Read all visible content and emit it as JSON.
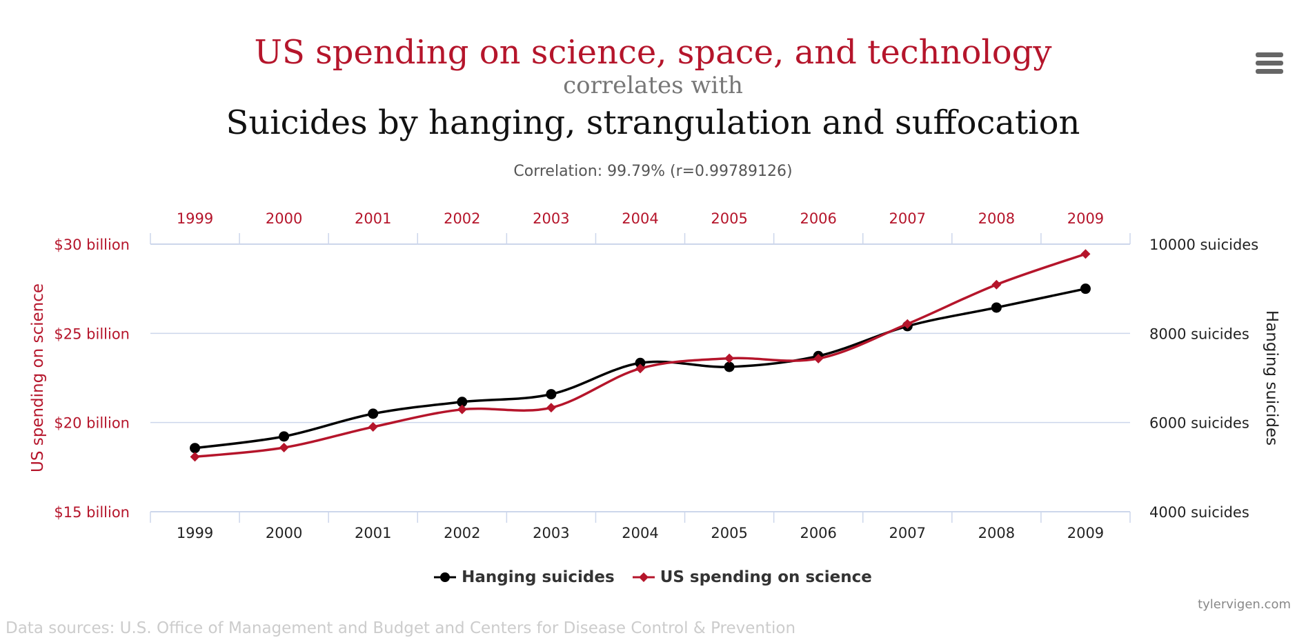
{
  "header": {
    "title_a": "US spending on science, space, and technology",
    "connector": "correlates with",
    "title_b": "Suicides by hanging, strangulation and suffocation",
    "correlation": "Correlation: 99.79% (r=0.99789126)"
  },
  "colors": {
    "spending": "#b5152b",
    "suicides": "#000000",
    "grid": "#ccd6eb"
  },
  "icons": {
    "menu": "hamburger-menu-icon"
  },
  "chart_data": {
    "type": "line",
    "categories": [
      "1999",
      "2000",
      "2001",
      "2002",
      "2003",
      "2004",
      "2005",
      "2006",
      "2007",
      "2008",
      "2009"
    ],
    "series": [
      {
        "name": "Hanging suicides",
        "axis": "right",
        "color": "#000000",
        "marker": "circle",
        "values": [
          5427,
          5688,
          6198,
          6462,
          6635,
          7336,
          7248,
          7491,
          8161,
          8578,
          9000
        ]
      },
      {
        "name": "US spending on science",
        "axis": "left",
        "color": "#b5152b",
        "marker": "diamond",
        "values": [
          18.079,
          18.594,
          19.753,
          20.734,
          20.831,
          23.029,
          23.597,
          23.584,
          25.525,
          27.731,
          29.449
        ]
      }
    ],
    "left_axis": {
      "label": "US spending on science",
      "ticks": [
        "$15 billion",
        "$20 billion",
        "$25 billion",
        "$30 billion"
      ],
      "tick_values": [
        15,
        20,
        25,
        30
      ],
      "range": [
        15,
        30
      ]
    },
    "right_axis": {
      "label": "Hanging suicides",
      "ticks": [
        "4000 suicides",
        "6000 suicides",
        "8000 suicides",
        "10000 suicides"
      ],
      "tick_values": [
        4000,
        6000,
        8000,
        10000
      ],
      "range": [
        4000,
        10000
      ]
    },
    "grid": true,
    "legend_position": "bottom-center"
  },
  "legend": {
    "items": [
      "Hanging suicides",
      "US spending on science"
    ]
  },
  "footer": {
    "credit": "tylervigen.com",
    "sources": "Data sources: U.S. Office of Management and Budget and Centers for Disease Control & Prevention"
  }
}
